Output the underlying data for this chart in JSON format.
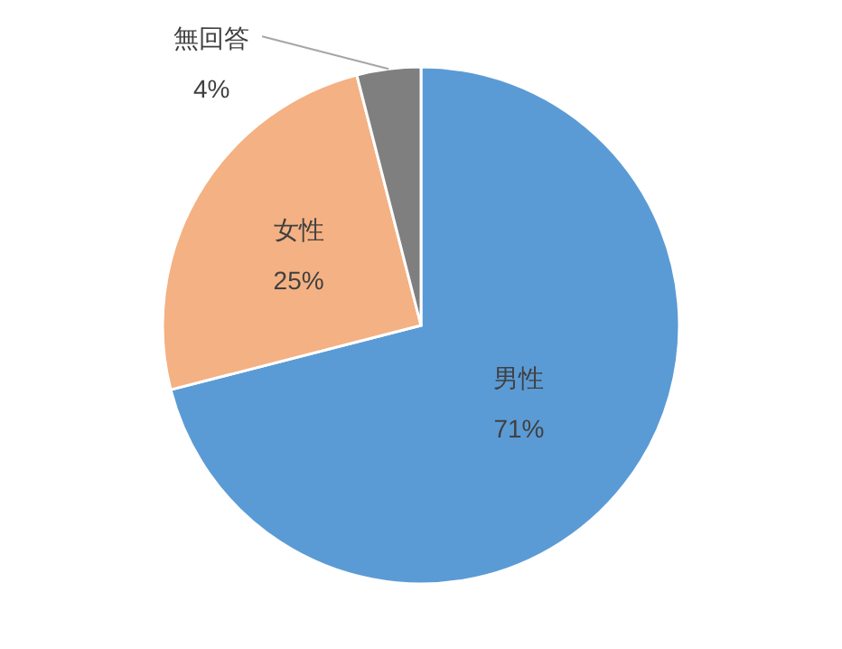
{
  "chart_data": {
    "type": "pie",
    "categories": [
      "男性",
      "女性",
      "無回答"
    ],
    "values": [
      71,
      25,
      4
    ],
    "value_labels": [
      "71%",
      "25%",
      "4%"
    ],
    "colors": [
      "#5b9bd5",
      "#f4b183",
      "#7f7f7f"
    ],
    "legend": false
  }
}
